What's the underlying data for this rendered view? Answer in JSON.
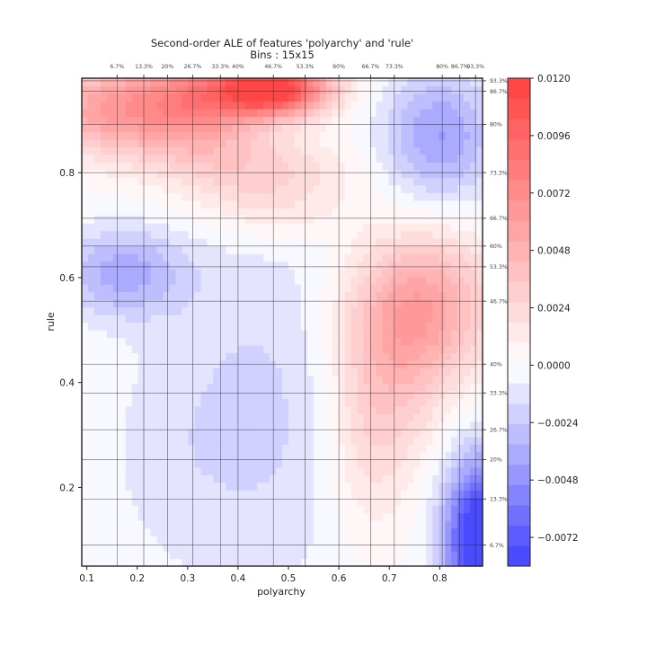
{
  "chart_data": {
    "type": "heatmap",
    "title": "Second-order ALE of features 'polyarchy' and 'rule'",
    "subtitle": "Bins : 15x15",
    "xlabel": "polyarchy",
    "ylabel": "rule",
    "xlim": [
      0.09,
      0.885
    ],
    "ylim": [
      0.05,
      0.98
    ],
    "x_ticks": [
      0.1,
      0.2,
      0.3,
      0.4,
      0.5,
      0.6,
      0.7,
      0.8
    ],
    "x_tick_labels": [
      "0.1",
      "0.2",
      "0.3",
      "0.4",
      "0.5",
      "0.6",
      "0.7",
      "0.8"
    ],
    "y_ticks": [
      0.2,
      0.4,
      0.6,
      0.8
    ],
    "y_tick_labels": [
      "0.2",
      "0.4",
      "0.6",
      "0.8"
    ],
    "x_quantiles": [
      {
        "label": "6.7%",
        "value": 0.16
      },
      {
        "label": "13.3%",
        "value": 0.213
      },
      {
        "label": "20%",
        "value": 0.26
      },
      {
        "label": "26.7%",
        "value": 0.31
      },
      {
        "label": "33.3%",
        "value": 0.365
      },
      {
        "label": "40%",
        "value": 0.4
      },
      {
        "label": "46.7%",
        "value": 0.47
      },
      {
        "label": "53.3%",
        "value": 0.533
      },
      {
        "label": "60%",
        "value": 0.6
      },
      {
        "label": "66.7%",
        "value": 0.663
      },
      {
        "label": "73.3%",
        "value": 0.71
      },
      {
        "label": "80%",
        "value": 0.805
      },
      {
        "label": "86.7%",
        "value": 0.84
      },
      {
        "label": "93.3%",
        "value": 0.871
      }
    ],
    "y_quantiles": [
      {
        "label": "6.7%",
        "value": 0.09
      },
      {
        "label": "13.3%",
        "value": 0.178
      },
      {
        "label": "20%",
        "value": 0.253
      },
      {
        "label": "26.7%",
        "value": 0.31
      },
      {
        "label": "33.3%",
        "value": 0.38
      },
      {
        "label": "40%",
        "value": 0.435
      },
      {
        "label": "46.7%",
        "value": 0.555
      },
      {
        "label": "53.3%",
        "value": 0.6205
      },
      {
        "label": "60%",
        "value": 0.66
      },
      {
        "label": "66.7%",
        "value": 0.713
      },
      {
        "label": "73.3%",
        "value": 0.8
      },
      {
        "label": "80%",
        "value": 0.892
      },
      {
        "label": "86.7%",
        "value": 0.955
      },
      {
        "label": "93.3%",
        "value": 0.975
      }
    ],
    "colorbar": {
      "vmin": -0.0084,
      "vmax": 0.012,
      "ticks": [
        0.012,
        0.0096,
        0.0072,
        0.0048,
        0.0024,
        0.0,
        -0.0024,
        -0.0048,
        -0.0072
      ],
      "tick_labels": [
        "0.0120",
        "0.0096",
        "0.0072",
        "0.0048",
        "0.0024",
        "0.0000",
        "−0.0024",
        "−0.0048",
        "−0.0072"
      ],
      "levels": 24,
      "colormap": "bwr",
      "color_min": "#4040ff",
      "color_mid": "#ffffff",
      "color_max": "#ff4040"
    },
    "features": [
      {
        "x": 0.47,
        "y": 0.96,
        "value": 0.012,
        "sigma_x": 0.08,
        "sigma_y": 0.035
      },
      {
        "x": 0.3,
        "y": 0.93,
        "value": 0.0075,
        "sigma_x": 0.1,
        "sigma_y": 0.07
      },
      {
        "x": 0.12,
        "y": 0.92,
        "value": 0.0045,
        "sigma_x": 0.08,
        "sigma_y": 0.06
      },
      {
        "x": 0.45,
        "y": 0.8,
        "value": 0.003,
        "sigma_x": 0.12,
        "sigma_y": 0.05
      },
      {
        "x": 0.47,
        "y": 0.72,
        "value": 0.0012,
        "sigma_x": 0.1,
        "sigma_y": 0.04
      },
      {
        "x": 0.77,
        "y": 0.55,
        "value": 0.0052,
        "sigma_x": 0.1,
        "sigma_y": 0.1
      },
      {
        "x": 0.7,
        "y": 0.42,
        "value": 0.003,
        "sigma_x": 0.08,
        "sigma_y": 0.12
      },
      {
        "x": 0.66,
        "y": 0.25,
        "value": 0.0018,
        "sigma_x": 0.06,
        "sigma_y": 0.12
      },
      {
        "x": 0.8,
        "y": 0.87,
        "value": -0.0042,
        "sigma_x": 0.08,
        "sigma_y": 0.09
      },
      {
        "x": 0.88,
        "y": 0.1,
        "value": -0.01,
        "sigma_x": 0.05,
        "sigma_y": 0.11
      },
      {
        "x": 0.17,
        "y": 0.61,
        "value": -0.0036,
        "sigma_x": 0.09,
        "sigma_y": 0.06
      },
      {
        "x": 0.45,
        "y": 0.35,
        "value": -0.0018,
        "sigma_x": 0.15,
        "sigma_y": 0.25
      },
      {
        "x": 0.25,
        "y": 0.25,
        "value": -0.0006,
        "sigma_x": 0.1,
        "sigma_y": 0.15
      }
    ],
    "grid": false
  }
}
